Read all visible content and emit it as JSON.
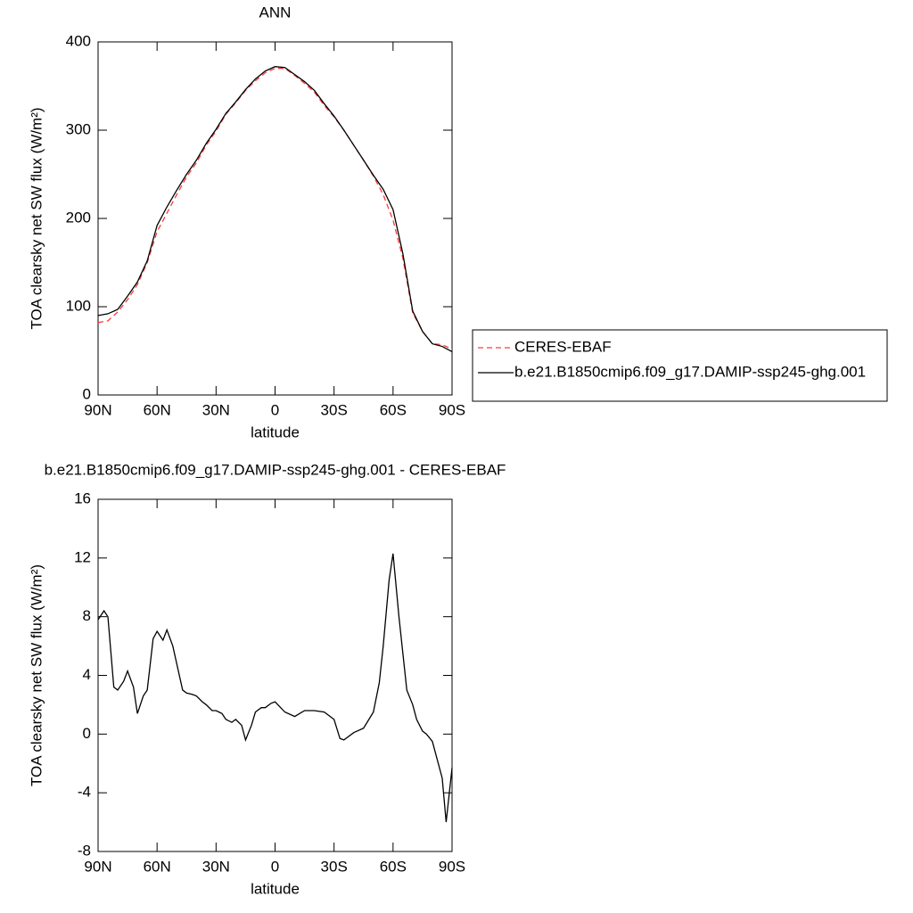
{
  "chart_data": [
    {
      "type": "line",
      "title": "ANN",
      "xlabel": "latitude",
      "ylabel": "TOA clearsky net SW flux (W/m²)",
      "x": [
        90,
        85,
        80,
        75,
        70,
        65,
        60,
        55,
        50,
        45,
        40,
        35,
        30,
        25,
        20,
        15,
        10,
        5,
        0,
        -5,
        -10,
        -15,
        -20,
        -25,
        -30,
        -35,
        -40,
        -45,
        -50,
        -55,
        -60,
        -65,
        -70,
        -75,
        -80,
        -85,
        -90
      ],
      "xlim": [
        90,
        -90
      ],
      "xticks": [
        {
          "value": 90,
          "label": "90N"
        },
        {
          "value": 60,
          "label": "60N"
        },
        {
          "value": 30,
          "label": "30N"
        },
        0,
        {
          "value": -30,
          "label": "30S"
        },
        {
          "value": -60,
          "label": "60S"
        },
        {
          "value": -90,
          "label": "90S"
        }
      ],
      "ylim": [
        0,
        400
      ],
      "yticks": [
        0,
        100,
        200,
        300,
        400
      ],
      "legend": "right",
      "series": [
        {
          "name": "CERES-EBAF",
          "color": "#ff3b3b",
          "line_style": "dashed",
          "values": [
            82,
            84,
            94,
            108,
            125,
            150,
            185,
            206,
            227,
            247,
            263,
            283,
            299,
            318,
            331,
            345,
            356,
            365,
            370,
            370,
            362,
            353,
            343,
            328,
            315,
            300,
            283,
            266,
            248,
            227,
            198,
            155,
            93,
            72,
            58,
            57,
            52
          ]
        },
        {
          "name": "b.e21.B1850cmip6.f09_g17.DAMIP-ssp245-ghg.001",
          "color": "#000000",
          "line_style": "solid",
          "values": [
            90,
            92,
            97,
            112,
            128,
            152,
            192,
            213,
            232,
            250,
            266,
            285,
            301,
            319,
            332,
            346,
            358,
            367,
            372,
            371,
            363,
            355,
            345,
            330,
            316,
            300,
            283,
            266,
            249,
            233,
            210,
            160,
            95,
            72,
            58,
            55,
            49
          ]
        }
      ]
    },
    {
      "type": "line",
      "title": "b.e21.B1850cmip6.f09_g17.DAMIP-ssp245-ghg.001 - CERES-EBAF",
      "xlabel": "latitude",
      "ylabel": "TOA clearsky net SW flux (W/m²)",
      "x": [
        90,
        87,
        85,
        82,
        80,
        77,
        75,
        72,
        70,
        67,
        65,
        62,
        60,
        57,
        55,
        52,
        50,
        47,
        45,
        42,
        40,
        37,
        35,
        32,
        30,
        27,
        25,
        22,
        20,
        17,
        15,
        12,
        10,
        7,
        5,
        2,
        0,
        -5,
        -10,
        -15,
        -20,
        -25,
        -30,
        -33,
        -35,
        -40,
        -45,
        -50,
        -53,
        -55,
        -58,
        -60,
        -63,
        -65,
        -67,
        -70,
        -72,
        -75,
        -77,
        -80,
        -82,
        -85,
        -87,
        -90
      ],
      "xlim": [
        90,
        -90
      ],
      "xticks": [
        {
          "value": 90,
          "label": "90N"
        },
        {
          "value": 60,
          "label": "60N"
        },
        {
          "value": 30,
          "label": "30N"
        },
        0,
        {
          "value": -30,
          "label": "30S"
        },
        {
          "value": -60,
          "label": "60S"
        },
        {
          "value": -90,
          "label": "90S"
        }
      ],
      "ylim": [
        -8,
        16
      ],
      "yticks": [
        -8,
        -4,
        0,
        4,
        8,
        12,
        16
      ],
      "color": "#000000",
      "values": [
        7.8,
        8.4,
        8.0,
        3.2,
        3.0,
        3.6,
        4.3,
        3.2,
        1.4,
        2.6,
        3.0,
        6.5,
        7.0,
        6.4,
        7.1,
        6.0,
        4.8,
        3.0,
        2.8,
        2.7,
        2.6,
        2.2,
        2.0,
        1.6,
        1.6,
        1.4,
        1.0,
        0.8,
        1.0,
        0.6,
        -0.4,
        0.6,
        1.5,
        1.8,
        1.8,
        2.1,
        2.2,
        1.5,
        1.2,
        1.6,
        1.6,
        1.5,
        1.0,
        -0.3,
        -0.4,
        0.1,
        0.4,
        1.5,
        3.5,
        6.0,
        10.5,
        12.3,
        8.0,
        5.5,
        3.0,
        2.0,
        1.0,
        0.2,
        0.0,
        -0.5,
        -1.5,
        -3.0,
        -6.0,
        -2.3
      ]
    }
  ]
}
